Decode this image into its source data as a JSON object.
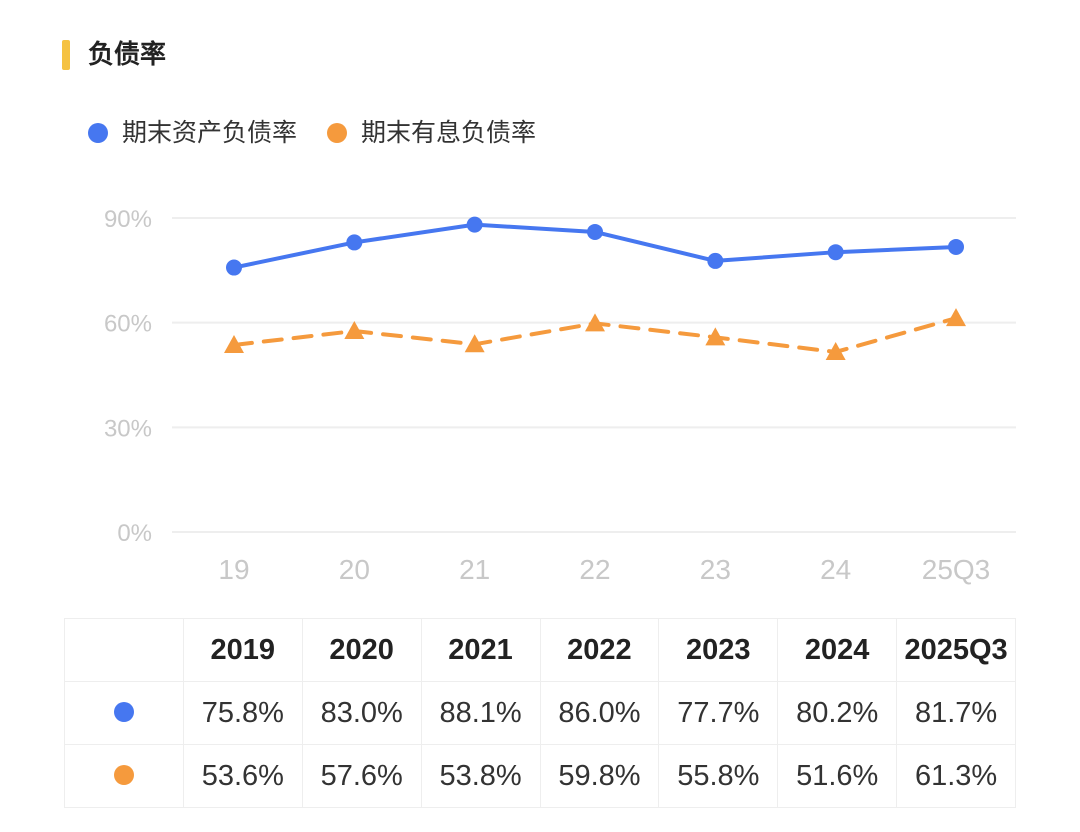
{
  "title": "负债率",
  "colors": {
    "accent": "#f5c242",
    "series_blue": "#4677f0",
    "series_orange": "#f59a3d",
    "grid": "#eeeeee",
    "axis_text": "#c8c8c8"
  },
  "chart_data": {
    "type": "line",
    "x": [
      "19",
      "20",
      "21",
      "22",
      "23",
      "24",
      "25Q3"
    ],
    "ylim": [
      0,
      90
    ],
    "yticks": [
      "0%",
      "30%",
      "60%",
      "90%"
    ],
    "grid": true,
    "legend_position": "top-left",
    "series": [
      {
        "name": "期末资产负债率",
        "values": [
          75.8,
          83.0,
          88.1,
          86.0,
          77.7,
          80.2,
          81.7
        ],
        "color": "#4677f0",
        "marker": "circle",
        "style": "solid"
      },
      {
        "name": "期末有息负债率",
        "values": [
          53.6,
          57.6,
          53.8,
          59.8,
          55.8,
          51.6,
          61.3
        ],
        "color": "#f59a3d",
        "marker": "triangle",
        "style": "dashed"
      }
    ]
  },
  "table": {
    "headers": [
      "2019",
      "2020",
      "2021",
      "2022",
      "2023",
      "2024",
      "2025Q3"
    ],
    "rows": [
      {
        "marker_color": "#4677f0",
        "cells": [
          "75.8%",
          "83.0%",
          "88.1%",
          "86.0%",
          "77.7%",
          "80.2%",
          "81.7%"
        ]
      },
      {
        "marker_color": "#f59a3d",
        "cells": [
          "53.6%",
          "57.6%",
          "53.8%",
          "59.8%",
          "55.8%",
          "51.6%",
          "61.3%"
        ]
      }
    ]
  }
}
